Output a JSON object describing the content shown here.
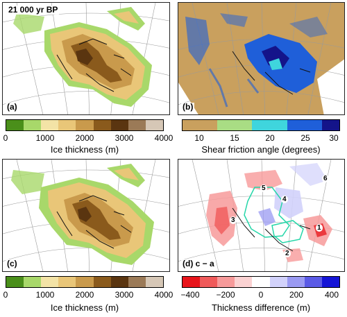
{
  "figure_title": "21 000 yr BP",
  "panels": {
    "a": {
      "label": "(a)"
    },
    "b": {
      "label": "(b)"
    },
    "c": {
      "label": "(c)"
    },
    "d": {
      "label": "(d) c − a",
      "region_numbers": [
        "1",
        "2",
        "3",
        "4",
        "5",
        "6"
      ]
    }
  },
  "colorbars": {
    "ice_a": {
      "title": "Ice thickness (m)",
      "ticks": [
        "0",
        "1000",
        "2000",
        "3000",
        "4000"
      ],
      "colors": [
        "#4a8f1a",
        "#a8d86a",
        "#f3e3a6",
        "#e9c678",
        "#c99a4c",
        "#8a5a1c",
        "#5a3510",
        "#9b7a57",
        "#d6c7b6"
      ]
    },
    "friction": {
      "title": "Shear friction angle (degrees)",
      "ticks": [
        "10",
        "15",
        "20",
        "25",
        "30"
      ],
      "colors": [
        "#c9a05e",
        "#c9a05e",
        "#a9dd84",
        "#a9dd84",
        "#3fd5dd",
        "#3fd5dd",
        "#1f5fd9",
        "#1f5fd9",
        "#14148a"
      ]
    },
    "ice_c": {
      "title": "Ice thickness (m)",
      "ticks": [
        "0",
        "1000",
        "2000",
        "3000",
        "4000"
      ],
      "colors": [
        "#4a8f1a",
        "#a8d86a",
        "#f3e3a6",
        "#e9c678",
        "#c99a4c",
        "#8a5a1c",
        "#5a3510",
        "#9b7a57",
        "#d6c7b6"
      ]
    },
    "diff": {
      "title": "Thickness difference (m)",
      "ticks": [
        "−400",
        "−200",
        "0",
        "200",
        "400"
      ],
      "colors": [
        "#e8141a",
        "#f05a5a",
        "#f79a9a",
        "#fbd2d2",
        "#ffffff",
        "#d2d2fb",
        "#9a9af2",
        "#5a5ae6",
        "#1414d6"
      ]
    }
  }
}
